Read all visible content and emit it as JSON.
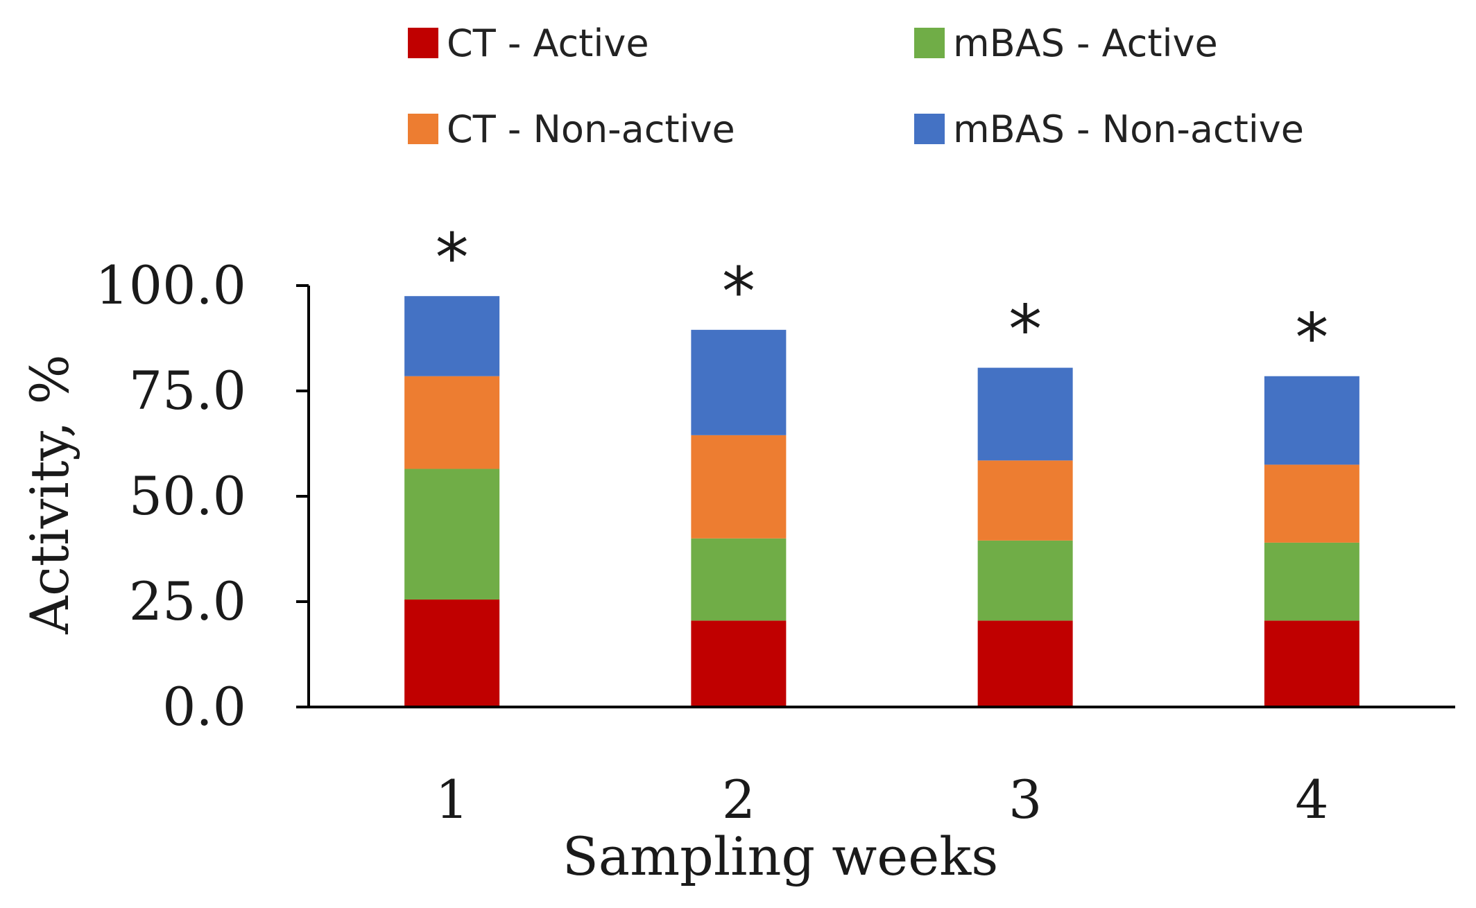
{
  "chart_data": {
    "type": "bar",
    "stacked": true,
    "categories": [
      "1",
      "2",
      "3",
      "4"
    ],
    "series": [
      {
        "name": "CT - Active",
        "color": "#c00000",
        "values": [
          25.5,
          20.5,
          20.5,
          20.5
        ]
      },
      {
        "name": "mBAS - Active",
        "color": "#70ad47",
        "values": [
          31.0,
          19.5,
          19.0,
          18.5
        ]
      },
      {
        "name": "CT - Non-active",
        "color": "#ed7d31",
        "values": [
          22.0,
          24.5,
          19.0,
          18.5
        ]
      },
      {
        "name": "mBAS - Non-active",
        "color": "#4472c4",
        "values": [
          19.0,
          25.0,
          22.0,
          21.0
        ]
      }
    ],
    "legend_order": [
      "CT - Active",
      "mBAS - Active",
      "CT - Non-active",
      "mBAS - Non-active"
    ],
    "annotations": [
      "*",
      "*",
      "*",
      "*"
    ],
    "title": "",
    "xlabel": "Sampling weeks",
    "ylabel": "Activity, %",
    "ylim": [
      0,
      100
    ],
    "yticks": [
      "0.0",
      "25.0",
      "50.0",
      "75.0",
      "100.0"
    ],
    "ytick_values": [
      0,
      25,
      50,
      75,
      100
    ],
    "grid": false,
    "legend_position": "top"
  }
}
